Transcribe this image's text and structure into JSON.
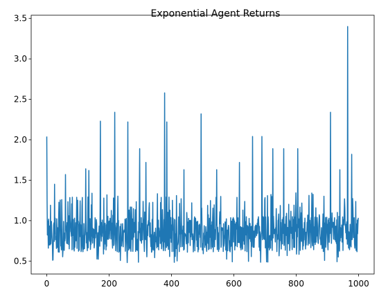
{
  "chart_data": {
    "type": "line",
    "title": "Exponential Agent Returns",
    "xlabel": "",
    "ylabel": "",
    "xlim": [
      -50,
      1050
    ],
    "ylim": [
      0.34,
      3.54
    ],
    "xticks": [
      0,
      200,
      400,
      600,
      800,
      1000
    ],
    "yticks": [
      0.5,
      1.0,
      1.5,
      2.0,
      2.5,
      3.0,
      3.5
    ],
    "ytick_labels": [
      "0.5",
      "1.0",
      "1.5",
      "2.0",
      "2.5",
      "3.0",
      "3.5"
    ],
    "grid": false,
    "legend": "none",
    "series": [
      {
        "color": "#1f77b4",
        "x_start": 0,
        "x_end": 999,
        "n_points": 1000,
        "baseline_range": [
          0.48,
          1.35
        ],
        "typical_value": 0.85,
        "spikes": [
          {
            "x": 0,
            "y": 2.04
          },
          {
            "x": 25,
            "y": 1.45
          },
          {
            "x": 60,
            "y": 1.57
          },
          {
            "x": 125,
            "y": 1.64
          },
          {
            "x": 135,
            "y": 1.62
          },
          {
            "x": 172,
            "y": 2.23
          },
          {
            "x": 218,
            "y": 2.34
          },
          {
            "x": 260,
            "y": 2.22
          },
          {
            "x": 298,
            "y": 1.89
          },
          {
            "x": 318,
            "y": 1.72
          },
          {
            "x": 378,
            "y": 2.58
          },
          {
            "x": 385,
            "y": 2.22
          },
          {
            "x": 440,
            "y": 1.63
          },
          {
            "x": 495,
            "y": 2.32
          },
          {
            "x": 545,
            "y": 1.63
          },
          {
            "x": 618,
            "y": 1.72
          },
          {
            "x": 660,
            "y": 2.04
          },
          {
            "x": 690,
            "y": 2.04
          },
          {
            "x": 725,
            "y": 1.89
          },
          {
            "x": 760,
            "y": 1.89
          },
          {
            "x": 805,
            "y": 1.89
          },
          {
            "x": 910,
            "y": 2.34
          },
          {
            "x": 940,
            "y": 1.63
          },
          {
            "x": 965,
            "y": 3.4
          },
          {
            "x": 978,
            "y": 1.82
          }
        ]
      }
    ]
  }
}
